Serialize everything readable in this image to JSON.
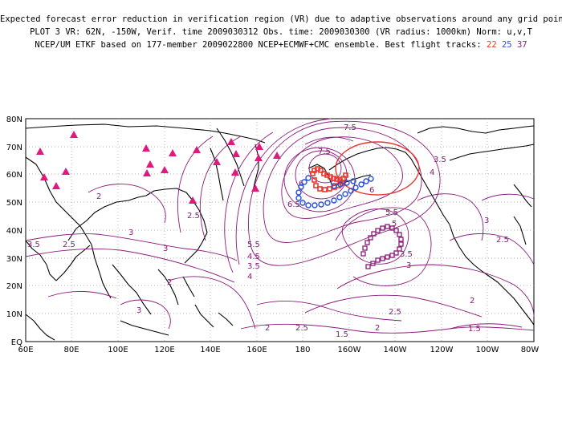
{
  "header": {
    "line1": "Expected forecast error reduction in verification region (VR) due to adaptive observations around any grid point.",
    "line2": "PLOT 3 VR: 62N, -150W, Verif. time 2009030312 Obs. time: 2009030300 (VR radius: 1000km) Norm: u,v,T",
    "line3_prefix": "NCEP/UM ETKF based on 177-member 2009022800 NCEP+ECMWF+CMC ensemble. Best flight tracks:",
    "track_a": "22",
    "track_b": "25",
    "track_c": "37"
  },
  "map": {
    "lat_labels": [
      "EQ",
      "10N",
      "20N",
      "30N",
      "40N",
      "50N",
      "60N",
      "70N",
      "80N"
    ],
    "lon_labels": [
      "60E",
      "80E",
      "100E",
      "120E",
      "140E",
      "160E",
      "180",
      "160W",
      "140W",
      "120W",
      "100W",
      "80W"
    ],
    "contour_labels": [
      "7.5",
      "7.5",
      "6.5",
      "6",
      "6",
      "5.5",
      "5.5",
      "5",
      "4.5",
      "4",
      "3.5",
      "3.5",
      "3",
      "3",
      "3",
      "3",
      "2.5",
      "2.5",
      "2.5",
      "2.5",
      "2.5",
      "2",
      "2",
      "2",
      "2",
      "1.5",
      "1.5",
      "3.5",
      "4",
      "3.5",
      "3",
      "2"
    ],
    "colors": {
      "contour": "#8b1a7a",
      "track22": "#e8382e",
      "track25": "#2a4fd6",
      "track37": "#8b1a7a",
      "stations": "#e0197d",
      "coast": "#000000",
      "vr_circle": "#e8382e"
    }
  }
}
